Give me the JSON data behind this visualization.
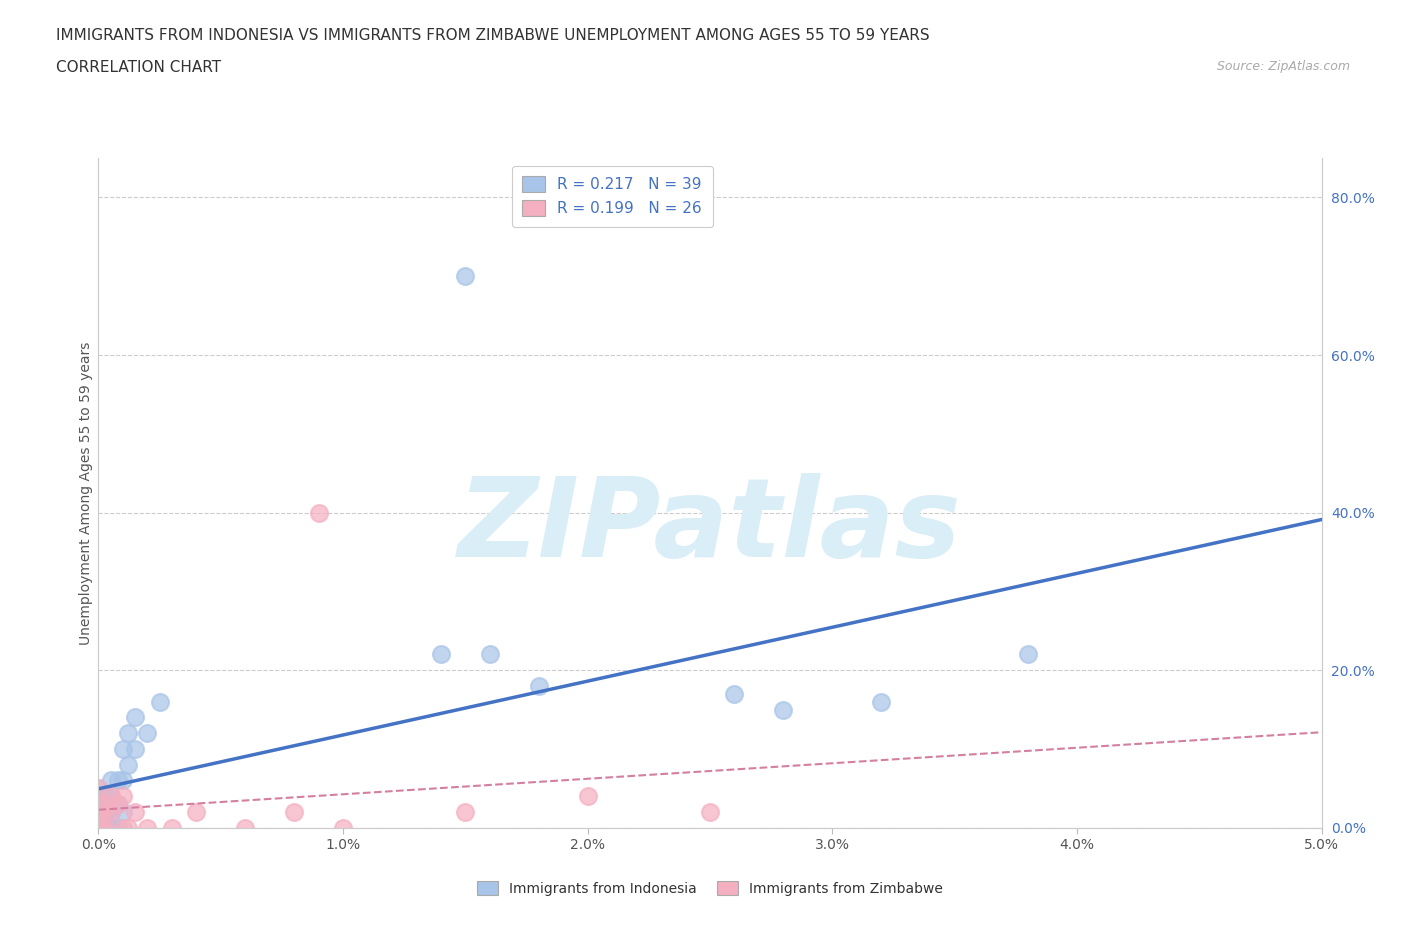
{
  "title_line1": "IMMIGRANTS FROM INDONESIA VS IMMIGRANTS FROM ZIMBABWE UNEMPLOYMENT AMONG AGES 55 TO 59 YEARS",
  "title_line2": "CORRELATION CHART",
  "source_text": "Source: ZipAtlas.com",
  "ylabel": "Unemployment Among Ages 55 to 59 years",
  "xlim": [
    0.0,
    0.05
  ],
  "ylim": [
    0.0,
    0.85
  ],
  "xticks": [
    0.0,
    0.01,
    0.02,
    0.03,
    0.04,
    0.05
  ],
  "xticklabels": [
    "0.0%",
    "1.0%",
    "2.0%",
    "3.0%",
    "4.0%",
    "5.0%"
  ],
  "yticks_right": [
    0.0,
    0.2,
    0.4,
    0.6,
    0.8
  ],
  "yticklabels_right": [
    "0.0%",
    "20.0%",
    "40.0%",
    "60.0%",
    "80.0%"
  ],
  "indonesia_color": "#a8c4e8",
  "zimbabwe_color": "#f4afc0",
  "indonesia_line_color": "#4472c4",
  "zimbabwe_line_color": "#d47fa0",
  "background_color": "#ffffff",
  "watermark": "ZIPatlas",
  "watermark_color": "#daeef8",
  "legend_R_indonesia": "0.217",
  "legend_N_indonesia": "39",
  "legend_R_zimbabwe": "0.199",
  "legend_N_zimbabwe": "26",
  "indonesia_x": [
    0.0,
    0.0,
    0.0,
    0.0,
    0.0,
    0.0,
    0.0,
    0.0,
    0.0,
    0.0,
    0.0002,
    0.0002,
    0.0002,
    0.0003,
    0.0003,
    0.0003,
    0.0005,
    0.0005,
    0.0005,
    0.0005,
    0.0008,
    0.0008,
    0.0008,
    0.001,
    0.001,
    0.001,
    0.0012,
    0.0012,
    0.0015,
    0.0015,
    0.002,
    0.0025,
    0.014,
    0.016,
    0.018,
    0.026,
    0.028,
    0.032,
    0.038
  ],
  "indonesia_y": [
    0.0,
    0.0,
    0.0,
    0.0,
    0.01,
    0.01,
    0.02,
    0.03,
    0.04,
    0.05,
    0.0,
    0.01,
    0.02,
    0.0,
    0.02,
    0.04,
    0.0,
    0.02,
    0.04,
    0.06,
    0.0,
    0.03,
    0.06,
    0.02,
    0.06,
    0.1,
    0.08,
    0.12,
    0.1,
    0.14,
    0.12,
    0.16,
    0.22,
    0.22,
    0.18,
    0.17,
    0.15,
    0.16,
    0.22
  ],
  "indonesia_outlier_x": [
    0.015
  ],
  "indonesia_outlier_y": [
    0.7
  ],
  "zimbabwe_x": [
    0.0,
    0.0,
    0.0,
    0.0,
    0.0,
    0.0,
    0.0002,
    0.0002,
    0.0003,
    0.0003,
    0.0005,
    0.0005,
    0.0008,
    0.001,
    0.001,
    0.0012,
    0.0015,
    0.002,
    0.003,
    0.004,
    0.006,
    0.008,
    0.01,
    0.015,
    0.02,
    0.025
  ],
  "zimbabwe_y": [
    0.0,
    0.0,
    0.01,
    0.02,
    0.03,
    0.05,
    0.0,
    0.02,
    0.0,
    0.03,
    0.02,
    0.04,
    0.03,
    0.0,
    0.04,
    0.0,
    0.02,
    0.0,
    0.0,
    0.02,
    0.0,
    0.02,
    0.0,
    0.02,
    0.04,
    0.02
  ],
  "zimbabwe_outlier_x": [
    0.009
  ],
  "zimbabwe_outlier_y": [
    0.4
  ],
  "grid_color": "#cccccc",
  "title_fontsize": 11,
  "axis_label_fontsize": 10,
  "tick_fontsize": 10,
  "legend_text_color": "#4472c4"
}
